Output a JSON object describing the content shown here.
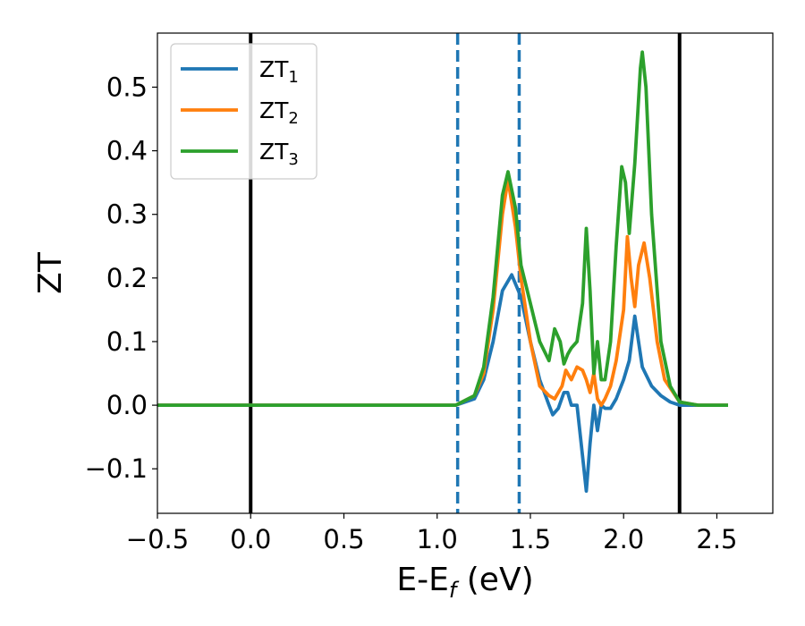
{
  "chart_data": {
    "type": "line",
    "xlabel": "E-E",
    "xlabel_sub": "f",
    "xlabel_unit": " (eV)",
    "ylabel": "ZT",
    "xlim": [
      -0.5,
      2.8
    ],
    "ylim": [
      -0.17,
      0.585
    ],
    "x_ticks": [
      -0.5,
      0.0,
      0.5,
      1.0,
      1.5,
      2.0,
      2.5
    ],
    "x_tick_labels": [
      "−0.5",
      "0.0",
      "0.5",
      "1.0",
      "1.5",
      "2.0",
      "2.5"
    ],
    "y_ticks": [
      -0.1,
      0.0,
      0.1,
      0.2,
      0.3,
      0.4,
      0.5
    ],
    "y_tick_labels": [
      "−0.1",
      "0.0",
      "0.1",
      "0.2",
      "0.3",
      "0.4",
      "0.5"
    ],
    "grid": false,
    "legend_position": "top-left",
    "vlines": [
      {
        "x": 0.0,
        "style": "solid",
        "color": "#000000"
      },
      {
        "x": 2.3,
        "style": "solid",
        "color": "#000000"
      },
      {
        "x": 1.11,
        "style": "dashed",
        "color": "#1f77b4"
      },
      {
        "x": 1.44,
        "style": "dashed",
        "color": "#1f77b4"
      }
    ],
    "series": [
      {
        "name": "ZT",
        "name_sub": "1",
        "color": "#1f77b4",
        "x": [
          -0.5,
          1.0,
          1.1,
          1.2,
          1.25,
          1.3,
          1.35,
          1.4,
          1.45,
          1.5,
          1.55,
          1.6,
          1.62,
          1.65,
          1.68,
          1.7,
          1.72,
          1.75,
          1.78,
          1.8,
          1.82,
          1.84,
          1.86,
          1.88,
          1.9,
          1.93,
          1.96,
          2.0,
          2.03,
          2.06,
          2.08,
          2.1,
          2.15,
          2.2,
          2.25,
          2.3,
          2.4,
          2.56
        ],
        "y": [
          0.0,
          0.0,
          0.0,
          0.01,
          0.04,
          0.1,
          0.18,
          0.205,
          0.17,
          0.1,
          0.04,
          0.0,
          -0.015,
          -0.005,
          0.02,
          0.02,
          0.0,
          0.0,
          -0.08,
          -0.135,
          -0.06,
          0.0,
          -0.04,
          0.0,
          -0.005,
          -0.005,
          0.01,
          0.04,
          0.07,
          0.14,
          0.1,
          0.06,
          0.03,
          0.015,
          0.005,
          0.0,
          0.0,
          0.0
        ]
      },
      {
        "name": "ZT",
        "name_sub": "2",
        "color": "#ff7f0e",
        "x": [
          -0.5,
          1.0,
          1.1,
          1.2,
          1.25,
          1.3,
          1.35,
          1.38,
          1.42,
          1.45,
          1.5,
          1.55,
          1.6,
          1.63,
          1.67,
          1.69,
          1.72,
          1.75,
          1.78,
          1.8,
          1.82,
          1.84,
          1.86,
          1.88,
          1.9,
          1.93,
          1.96,
          2.0,
          2.02,
          2.04,
          2.06,
          2.08,
          2.11,
          2.14,
          2.18,
          2.22,
          2.3,
          2.4,
          2.56
        ],
        "y": [
          0.0,
          0.0,
          0.0,
          0.015,
          0.05,
          0.15,
          0.3,
          0.355,
          0.28,
          0.2,
          0.1,
          0.03,
          0.015,
          0.01,
          0.03,
          0.055,
          0.04,
          0.06,
          0.055,
          0.04,
          0.02,
          0.05,
          0.01,
          0.0,
          0.01,
          0.03,
          0.07,
          0.15,
          0.265,
          0.2,
          0.155,
          0.22,
          0.255,
          0.2,
          0.1,
          0.04,
          0.005,
          0.0,
          0.0
        ]
      },
      {
        "name": "ZT",
        "name_sub": "3",
        "color": "#2ca02c",
        "x": [
          -0.5,
          1.0,
          1.1,
          1.2,
          1.25,
          1.3,
          1.35,
          1.38,
          1.42,
          1.45,
          1.5,
          1.55,
          1.6,
          1.63,
          1.66,
          1.68,
          1.7,
          1.72,
          1.75,
          1.78,
          1.8,
          1.82,
          1.84,
          1.86,
          1.88,
          1.9,
          1.93,
          1.96,
          1.99,
          2.01,
          2.03,
          2.06,
          2.09,
          2.1,
          2.12,
          2.15,
          2.2,
          2.25,
          2.3,
          2.4,
          2.56
        ],
        "y": [
          0.0,
          0.0,
          0.0,
          0.015,
          0.06,
          0.17,
          0.33,
          0.367,
          0.31,
          0.22,
          0.16,
          0.1,
          0.07,
          0.12,
          0.1,
          0.065,
          0.08,
          0.09,
          0.1,
          0.16,
          0.278,
          0.18,
          0.05,
          0.1,
          0.04,
          0.04,
          0.1,
          0.25,
          0.375,
          0.35,
          0.27,
          0.38,
          0.53,
          0.555,
          0.5,
          0.3,
          0.1,
          0.03,
          0.005,
          0.0,
          0.0
        ]
      }
    ]
  }
}
